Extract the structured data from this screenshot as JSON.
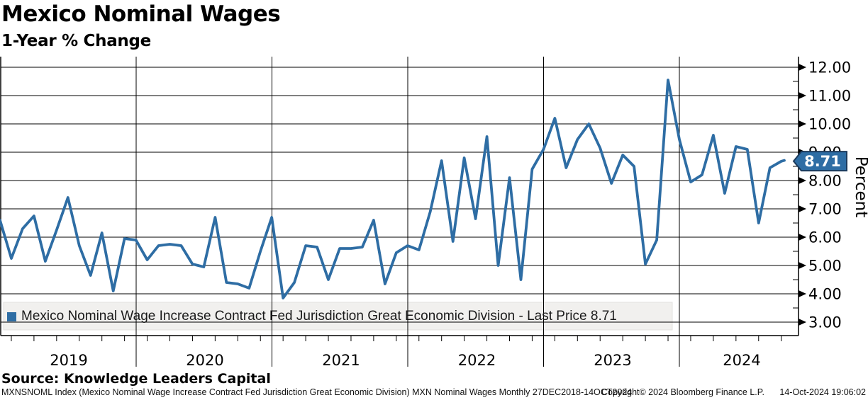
{
  "title": "Mexico Nominal Wages",
  "subtitle": "1-Year % Change",
  "legend": {
    "marker_color": "#2e6da4",
    "label": "Mexico Nominal Wage Increase Contract Fed Jurisdiction Great Economic Division - Last Price 8.71"
  },
  "last_price_badge": {
    "value": "8.71",
    "fill": "#2e6da4",
    "border": "#1b3a5c",
    "text_color": "#ffffff"
  },
  "source_line": "Source: Knowledge Leaders Capital",
  "footer": {
    "left": "MXNSNOML Index (Mexico Nominal Wage Increase Contract Fed Jurisdiction Great Economic Division) MXN Nominal Wages  Monthly 27DEC2018-14OCT2024",
    "center": "Copyright© 2024 Bloomberg Finance L.P.",
    "right": "14-Oct-2024 19:06:02"
  },
  "chart_data": {
    "type": "line",
    "title": "Mexico Nominal Wages",
    "subtitle": "1-Year % Change",
    "ylabel": "Percent",
    "ylim": [
      3,
      12
    ],
    "ytick_step": 1,
    "ytick_minor_step": 0.5,
    "ytick_labels": [
      "3.00",
      "4.00",
      "5.00",
      "6.00",
      "7.00",
      "8.00",
      "9.00",
      "10.00",
      "11.00",
      "12.00"
    ],
    "x_year_labels": [
      "2019",
      "2020",
      "2021",
      "2022",
      "2023",
      "2024"
    ],
    "grid": "both",
    "legend_position": "bottom-left",
    "series": [
      {
        "name": "Mexico Nominal Wage Increase Contract Fed Jurisdiction Great Economic Division",
        "color": "#2e6da4",
        "frequency": "monthly",
        "x_start": "2018-12",
        "x_end": "2024-10",
        "last_price": 8.71,
        "values": [
          6.6,
          5.25,
          6.3,
          6.75,
          5.15,
          6.25,
          7.4,
          5.7,
          4.65,
          6.15,
          4.1,
          5.95,
          5.9,
          5.2,
          5.7,
          5.75,
          5.7,
          5.05,
          4.95,
          6.7,
          4.4,
          4.35,
          4.2,
          5.5,
          6.7,
          3.85,
          4.4,
          5.7,
          5.65,
          4.5,
          5.6,
          5.6,
          5.65,
          6.6,
          4.35,
          5.45,
          5.7,
          5.55,
          6.9,
          8.7,
          5.85,
          8.8,
          6.65,
          9.55,
          5.0,
          8.1,
          4.5,
          8.4,
          9.1,
          10.2,
          8.45,
          9.45,
          10.0,
          9.15,
          7.9,
          8.9,
          8.5,
          5.05,
          5.9,
          11.55,
          9.45,
          7.95,
          8.2,
          9.6,
          7.55,
          9.2,
          9.1,
          6.5,
          8.45,
          8.68,
          8.71
        ]
      }
    ]
  }
}
